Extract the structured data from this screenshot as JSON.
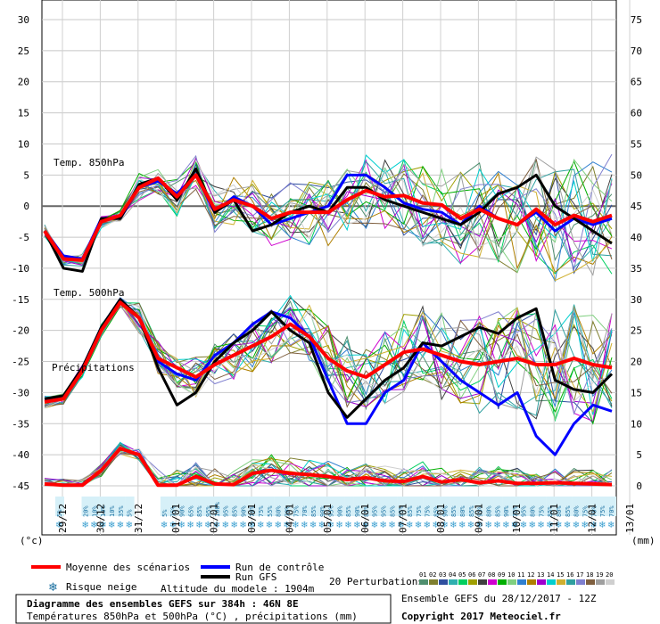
{
  "chart_data": {
    "type": "line",
    "title": "Diagramme des ensembles GEFS sur 384h : 46N 8E",
    "subtitle": "Températures 850hPa et 500hPa (°C) , précipitations (mm)",
    "ensemble_label": "Ensemble GEFS du 28/12/2017 - 12Z",
    "copyright": "Copyright 2017 Meteociel.fr",
    "altitude": "Altitude du modele : 1904m",
    "left_unit": "(°c)",
    "right_unit": "(mm)",
    "left_ticks": [
      "30",
      "25",
      "20",
      "15",
      "10",
      "5",
      "0",
      "-5",
      "-10",
      "-15",
      "-20",
      "-25",
      "-30",
      "-35",
      "-40",
      "-45"
    ],
    "left_ylim": [
      -45,
      30
    ],
    "right_ticks": [
      "75",
      "70",
      "65",
      "60",
      "55",
      "50",
      "45",
      "40",
      "35",
      "30",
      "25",
      "20",
      "15",
      "10",
      "5",
      "0"
    ],
    "right_ylim": [
      0,
      75
    ],
    "x_labels": [
      "29/12",
      "30/12",
      "31/12",
      "01/01",
      "02/01",
      "03/01",
      "04/01",
      "05/01",
      "06/01",
      "07/01",
      "08/01",
      "09/01",
      "10/01",
      "11/01",
      "12/01",
      "13/01"
    ],
    "panel_labels": {
      "t850": "Temp. 850hPa",
      "t500": "Temp. 500hPa",
      "precip": "Précipitations"
    },
    "legend": {
      "mean": "Moyenne des scénarios",
      "control": "Run de contrôle",
      "gfs": "Run GFS",
      "snow": "Risque neige",
      "perturb": "20 Perturbations",
      "perturb_ids": [
        "01",
        "02",
        "03",
        "04",
        "05",
        "06",
        "07",
        "08",
        "09",
        "10",
        "11",
        "12",
        "13",
        "14",
        "15",
        "16",
        "17",
        "18",
        "19",
        "20"
      ],
      "perturb_colors": [
        "#4f8f6f",
        "#7f7f2f",
        "#2f4f9f",
        "#2fafaf",
        "#00cf5f",
        "#9f9f00",
        "#3f3f3f",
        "#cf00cf",
        "#00af00",
        "#7fcf7f",
        "#2f7fcf",
        "#af7f00",
        "#9f00cf",
        "#00cfcf",
        "#cfaf2f",
        "#2f9f9f",
        "#7f7fcf",
        "#7f5f3f",
        "#9f9f9f",
        "#cfcfcf"
      ]
    },
    "snow_pct": [
      "5%",
      "",
      "",
      "20%",
      "10%",
      "10%",
      "10%",
      "35%",
      "5%",
      "",
      "",
      "",
      "5%",
      "75%",
      "90%",
      "65%",
      "85%",
      "95%",
      "100%",
      "95%",
      "85%",
      "90%",
      "70%",
      "75%",
      "55%",
      "80%",
      "70%",
      "75%",
      "70%",
      "85%",
      "90%",
      "95%",
      "90%",
      "85%",
      "90%",
      "85%",
      "95%",
      "95%",
      "85%",
      "95%",
      "85%",
      "75%",
      "75%",
      "85%",
      "90%",
      "85%",
      "80%",
      "85%",
      "95%",
      "80%",
      "85%",
      "90%",
      "75%",
      "95%",
      "80%",
      "75%",
      "85%",
      "80%",
      "85%",
      "80%",
      "75%",
      "70%",
      "75%",
      "70%"
    ],
    "series": [
      {
        "name": "Moyenne des scénarios",
        "panel": "t850",
        "color": "#ff0000",
        "x": [
          0,
          0.5,
          1,
          1.5,
          2,
          2.5,
          3,
          3.5,
          4,
          4.5,
          5,
          5.5,
          6,
          6.5,
          7,
          7.5,
          8,
          8.5,
          9,
          9.5,
          10,
          10.5,
          11,
          11.5,
          12,
          12.5,
          13,
          13.5,
          14,
          14.5,
          15
        ],
        "y": [
          -4,
          -8.5,
          -8.7,
          -2.5,
          -1.5,
          3,
          4.5,
          1.5,
          5,
          -0.5,
          1,
          0,
          -2,
          -1,
          -1,
          -1,
          1,
          2.5,
          1.5,
          1.7,
          0.5,
          0.2,
          -2,
          -0.5,
          -2,
          -3,
          -0.5,
          -3,
          -1.5,
          -2.5,
          -1.5
        ]
      },
      {
        "name": "Run de contrôle",
        "panel": "t850",
        "color": "#0000ff",
        "x": [
          0,
          0.5,
          1,
          1.5,
          2,
          2.5,
          3,
          3.5,
          4,
          4.5,
          5,
          5.5,
          6,
          6.5,
          7,
          7.5,
          8,
          8.5,
          9,
          9.5,
          10,
          10.5,
          11,
          11.5,
          12,
          12.5,
          13,
          13.5,
          14,
          14.5,
          15
        ],
        "y": [
          -4,
          -8,
          -8.5,
          -2,
          -2,
          3,
          4,
          2,
          5,
          -1,
          1.5,
          0,
          -3,
          -2,
          -1,
          0,
          5,
          5,
          3,
          0.5,
          -0.5,
          -1,
          -3,
          0,
          -2,
          -3,
          -1,
          -4,
          -2,
          -3,
          -2
        ]
      },
      {
        "name": "Run GFS",
        "panel": "t850",
        "color": "#000000",
        "x": [
          0,
          0.5,
          1,
          1.5,
          2,
          2.5,
          3,
          3.5,
          4,
          4.5,
          5,
          5.5,
          6,
          6.5,
          7,
          7.5,
          8,
          8.5,
          9,
          9.5,
          10,
          10.5,
          11,
          11.5,
          12,
          12.5,
          13,
          13.5,
          14,
          14.5,
          15
        ],
        "y": [
          -4,
          -10,
          -10.5,
          -2,
          -2,
          3.5,
          4.5,
          1,
          6,
          -1,
          1,
          -4,
          -3,
          -1,
          0,
          -1,
          3,
          3,
          1,
          0,
          -1,
          -2,
          -3,
          -1,
          2,
          3,
          5,
          0,
          -2,
          -4,
          -6
        ]
      },
      {
        "name": "Moyenne des scénarios",
        "panel": "t500",
        "color": "#ff0000",
        "x": [
          0,
          0.5,
          1,
          1.5,
          2,
          2.5,
          3,
          3.5,
          4,
          4.5,
          5,
          5.5,
          6,
          6.5,
          7,
          7.5,
          8,
          8.5,
          9,
          9.5,
          10,
          10.5,
          11,
          11.5,
          12,
          12.5,
          13,
          13.5,
          14,
          14.5,
          15
        ],
        "y": [
          -31.5,
          -31,
          -26.5,
          -20,
          -15.5,
          -18,
          -24.5,
          -26,
          -27.5,
          -25.5,
          -24,
          -22.5,
          -21,
          -19,
          -21,
          -24.5,
          -26.5,
          -27.5,
          -25.5,
          -23.5,
          -23,
          -24,
          -25,
          -25.5,
          -25,
          -24.5,
          -25.5,
          -25.5,
          -24.5,
          -25.5,
          -26
        ]
      },
      {
        "name": "Run de contrôle",
        "panel": "t500",
        "color": "#0000ff",
        "x": [
          0,
          0.5,
          1,
          1.5,
          2,
          2.5,
          3,
          3.5,
          4,
          4.5,
          5,
          5.5,
          6,
          6.5,
          7,
          7.5,
          8,
          8.5,
          9,
          9.5,
          10,
          10.5,
          11,
          11.5,
          12,
          12.5,
          13,
          13.5,
          14,
          14.5,
          15
        ],
        "y": [
          -31,
          -31,
          -26,
          -19.5,
          -15,
          -18,
          -25,
          -27,
          -28,
          -24,
          -22,
          -19,
          -17,
          -18,
          -21,
          -28,
          -35,
          -35,
          -30,
          -28,
          -22,
          -25,
          -28,
          -30,
          -32,
          -30,
          -37,
          -40,
          -35,
          -32,
          -33
        ]
      },
      {
        "name": "Run GFS",
        "panel": "t500",
        "color": "#000000",
        "x": [
          0,
          0.5,
          1,
          1.5,
          2,
          2.5,
          3,
          3.5,
          4,
          4.5,
          5,
          5.5,
          6,
          6.5,
          7,
          7.5,
          8,
          8.5,
          9,
          9.5,
          10,
          10.5,
          11,
          11.5,
          12,
          12.5,
          13,
          13.5,
          14,
          14.5,
          15
        ],
        "y": [
          -31,
          -30.5,
          -26,
          -19.5,
          -15,
          -18,
          -26,
          -32,
          -30,
          -25,
          -22,
          -20,
          -17,
          -20,
          -22,
          -30,
          -34,
          -31,
          -28,
          -26,
          -22,
          -22.5,
          -21,
          -19.5,
          -20.5,
          -18,
          -16.5,
          -28,
          -29.5,
          -30,
          -27
        ]
      },
      {
        "name": "Moyenne des scénarios",
        "panel": "precip",
        "color": "#ff0000",
        "x": [
          0,
          0.5,
          1,
          1.5,
          2,
          2.5,
          3,
          3.5,
          4,
          4.5,
          5,
          5.5,
          6,
          6.5,
          7,
          7.5,
          8,
          8.5,
          9,
          9.5,
          10,
          10.5,
          11,
          11.5,
          12,
          12.5,
          13,
          13.5,
          14,
          14.5,
          15
        ],
        "y": [
          0.3,
          0.1,
          0.1,
          2.5,
          6,
          5,
          0.1,
          0.1,
          1.5,
          0.3,
          0.2,
          2,
          2.5,
          2,
          1.8,
          1.5,
          1,
          1.3,
          0.8,
          0.7,
          1.5,
          0.6,
          1,
          0.5,
          0.8,
          0.4,
          0.4,
          0.5,
          0.4,
          0.3,
          0.2
        ]
      }
    ]
  }
}
